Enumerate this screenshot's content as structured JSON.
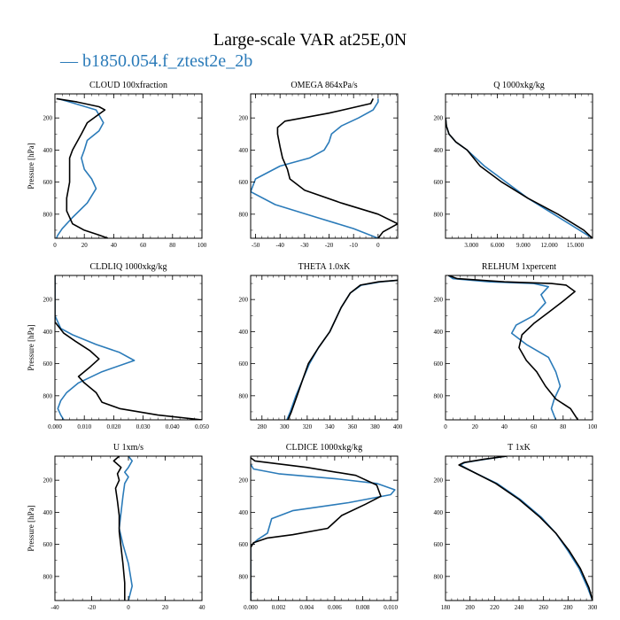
{
  "figure": {
    "title": "Large-scale VAR at25E,0N",
    "legend_label": "— b1850.054.f_ztest2e_2b",
    "colors": {
      "case": "#2b7bb9",
      "ref": "#000000"
    }
  },
  "chart_data": [
    {
      "type": "line",
      "title": "CLOUD  100xfraction",
      "ylabel": "Pressure [hPa]",
      "xlim": [
        0,
        100
      ],
      "ylim": [
        950,
        50
      ],
      "xticks": [
        0,
        20,
        40,
        60,
        80,
        100
      ],
      "xtick_labels": [
        "0",
        "20",
        "40",
        "60",
        "80",
        "100"
      ],
      "yticks": [
        200,
        400,
        600,
        800
      ],
      "ytick_labels": [
        "200",
        "400",
        "600",
        "800"
      ],
      "series": [
        {
          "color": "#2b7bb9",
          "x": [
            2,
            10,
            28,
            33,
            30,
            22,
            20,
            18,
            20,
            25,
            28,
            22,
            12,
            5,
            2,
            1
          ],
          "y": [
            80,
            100,
            150,
            230,
            280,
            340,
            400,
            450,
            520,
            580,
            640,
            730,
            820,
            890,
            930,
            950
          ]
        },
        {
          "color": "#000000",
          "x": [
            1,
            15,
            30,
            34,
            22,
            18,
            12,
            10,
            10,
            10,
            8,
            8,
            12,
            20,
            30,
            36
          ],
          "y": [
            80,
            100,
            130,
            150,
            230,
            300,
            400,
            450,
            520,
            600,
            700,
            780,
            860,
            900,
            930,
            950
          ]
        }
      ]
    },
    {
      "type": "line",
      "title": "OMEGA  864xPa/s",
      "ylabel": "",
      "xlim": [
        -52,
        8
      ],
      "ylim": [
        950,
        50
      ],
      "xticks": [
        -50,
        -40,
        -30,
        -20,
        -10,
        0
      ],
      "xtick_labels": [
        "-50",
        "-40",
        "-30",
        "-20",
        "-10",
        "0"
      ],
      "yticks": [
        200,
        400,
        600,
        800
      ],
      "ytick_labels": [
        "200",
        "400",
        "600",
        "800"
      ],
      "series": [
        {
          "color": "#2b7bb9",
          "x": [
            0,
            0,
            -2,
            -8,
            -15,
            -19,
            -20,
            -22,
            -28,
            -40,
            -50,
            -52,
            -42,
            -25,
            -10,
            0
          ],
          "y": [
            80,
            100,
            150,
            200,
            250,
            300,
            350,
            400,
            450,
            500,
            580,
            660,
            740,
            820,
            890,
            950
          ]
        },
        {
          "color": "#000000",
          "x": [
            -2,
            -3,
            -20,
            -38,
            -41,
            -41,
            -40,
            -39,
            -37,
            -36,
            -30,
            -15,
            0,
            8,
            2,
            0
          ],
          "y": [
            80,
            110,
            170,
            220,
            260,
            300,
            380,
            450,
            520,
            580,
            650,
            730,
            800,
            860,
            910,
            950
          ]
        }
      ]
    },
    {
      "type": "line",
      "title": "Q  1000xkg/kg",
      "ylabel": "",
      "xlim": [
        0,
        17000
      ],
      "ylim": [
        950,
        50
      ],
      "xticks": [
        3000,
        6000,
        9000,
        12000,
        15000
      ],
      "xtick_labels": [
        "3.000",
        "6.000",
        "9.000",
        "12.000",
        "15.000"
      ],
      "yticks": [
        200,
        400,
        600,
        800
      ],
      "ytick_labels": [
        "200",
        "400",
        "600",
        "800"
      ],
      "series": [
        {
          "color": "#2b7bb9",
          "x": [
            10,
            100,
            400,
            1200,
            2500,
            4500,
            7000,
            9500,
            12500,
            15500,
            17000
          ],
          "y": [
            200,
            250,
            300,
            350,
            400,
            500,
            600,
            700,
            800,
            900,
            950
          ]
        },
        {
          "color": "#000000",
          "x": [
            10,
            100,
            400,
            1200,
            2500,
            4000,
            6500,
            9500,
            13000,
            16000,
            17000
          ],
          "y": [
            200,
            250,
            300,
            350,
            400,
            500,
            600,
            700,
            800,
            900,
            950
          ]
        }
      ]
    },
    {
      "type": "line",
      "title": "CLDLIQ  1000xkg/kg",
      "ylabel": "Pressure [hPa]",
      "xlim": [
        0,
        0.05
      ],
      "ylim": [
        950,
        50
      ],
      "xticks": [
        0,
        0.01,
        0.02,
        0.03,
        0.04,
        0.05
      ],
      "xtick_labels": [
        "0.000",
        "0.010",
        "0.020",
        "0.030",
        "0.040",
        "0.050"
      ],
      "yticks": [
        200,
        400,
        600,
        800
      ],
      "ytick_labels": [
        "200",
        "400",
        "600",
        "800"
      ],
      "series": [
        {
          "color": "#2b7bb9",
          "x": [
            0,
            0,
            0.002,
            0.006,
            0.014,
            0.022,
            0.027,
            0.016,
            0.008,
            0.004,
            0.002,
            0.001,
            0.002,
            0.003
          ],
          "y": [
            50,
            300,
            380,
            420,
            480,
            530,
            580,
            650,
            720,
            780,
            830,
            880,
            920,
            950
          ]
        },
        {
          "color": "#000000",
          "x": [
            0,
            0,
            0.003,
            0.007,
            0.012,
            0.015,
            0.012,
            0.008,
            0.01,
            0.014,
            0.016,
            0.022,
            0.035,
            0.05
          ],
          "y": [
            50,
            340,
            410,
            460,
            520,
            570,
            620,
            680,
            720,
            780,
            840,
            880,
            920,
            950
          ]
        }
      ]
    },
    {
      "type": "line",
      "title": "THETA  1.0xK",
      "ylabel": "",
      "xlim": [
        270,
        400
      ],
      "ylim": [
        950,
        50
      ],
      "xticks": [
        280,
        300,
        320,
        340,
        360,
        380,
        400
      ],
      "xtick_labels": [
        "280",
        "300",
        "320",
        "340",
        "360",
        "380",
        "400"
      ],
      "yticks": [
        200,
        400,
        600,
        800
      ],
      "ytick_labels": [
        "200",
        "400",
        "600",
        "800"
      ],
      "series": [
        {
          "color": "#2b7bb9",
          "x": [
            400,
            385,
            368,
            358,
            350,
            340,
            330,
            322,
            316,
            310,
            305,
            302
          ],
          "y": [
            80,
            90,
            110,
            160,
            250,
            400,
            500,
            600,
            700,
            800,
            900,
            950
          ]
        },
        {
          "color": "#000000",
          "x": [
            400,
            383,
            367,
            358,
            350,
            340,
            330,
            321,
            316,
            311,
            306,
            303
          ],
          "y": [
            80,
            90,
            110,
            160,
            250,
            400,
            500,
            600,
            700,
            800,
            900,
            950
          ]
        }
      ]
    },
    {
      "type": "line",
      "title": "RELHUM  1xpercent",
      "ylabel": "",
      "xlim": [
        0,
        100
      ],
      "ylim": [
        950,
        50
      ],
      "xticks": [
        0,
        20,
        40,
        60,
        80,
        100
      ],
      "xtick_labels": [
        "0",
        "20",
        "40",
        "60",
        "80",
        "100"
      ],
      "yticks": [
        200,
        400,
        600,
        800
      ],
      "ytick_labels": [
        "200",
        "400",
        "600",
        "800"
      ],
      "series": [
        {
          "color": "#2b7bb9",
          "x": [
            2,
            5,
            30,
            60,
            70,
            65,
            68,
            60,
            48,
            45,
            55,
            70,
            75,
            78,
            74,
            72,
            75
          ],
          "y": [
            50,
            70,
            90,
            100,
            120,
            170,
            220,
            300,
            360,
            410,
            480,
            560,
            650,
            740,
            820,
            880,
            950
          ]
        },
        {
          "color": "#000000",
          "x": [
            2,
            8,
            40,
            72,
            82,
            88,
            80,
            70,
            60,
            52,
            50,
            55,
            62,
            68,
            75,
            85,
            90
          ],
          "y": [
            50,
            70,
            90,
            100,
            110,
            150,
            210,
            280,
            350,
            420,
            500,
            580,
            650,
            740,
            820,
            880,
            950
          ]
        }
      ]
    },
    {
      "type": "line",
      "title": "U  1xm/s",
      "ylabel": "Pressure [hPa]",
      "xlim": [
        -40,
        40
      ],
      "ylim": [
        950,
        50
      ],
      "xticks": [
        -40,
        -20,
        0,
        20,
        40
      ],
      "xtick_labels": [
        "-40",
        "-20",
        "0",
        "20",
        "40"
      ],
      "yticks": [
        200,
        400,
        600,
        800
      ],
      "ytick_labels": [
        "200",
        "400",
        "600",
        "800"
      ],
      "series": [
        {
          "color": "#2b7bb9",
          "x": [
            0,
            2,
            0,
            -2,
            0,
            -2,
            -3,
            -4,
            -5,
            -3,
            0,
            2,
            0
          ],
          "y": [
            50,
            80,
            120,
            150,
            180,
            220,
            300,
            400,
            500,
            600,
            720,
            860,
            950
          ]
        },
        {
          "color": "#000000",
          "x": [
            -5,
            -8,
            -4,
            -6,
            -5,
            -7,
            -6,
            -5,
            -5,
            -4,
            -3,
            -2,
            -2
          ],
          "y": [
            50,
            80,
            120,
            160,
            200,
            250,
            330,
            420,
            520,
            620,
            720,
            840,
            950
          ]
        }
      ]
    },
    {
      "type": "line",
      "title": "CLDICE  1000xkg/kg",
      "ylabel": "",
      "xlim": [
        0,
        0.0105
      ],
      "ylim": [
        950,
        50
      ],
      "xticks": [
        0,
        0.002,
        0.004,
        0.006,
        0.008,
        0.01
      ],
      "xtick_labels": [
        "0.000",
        "0.002",
        "0.004",
        "0.006",
        "0.008",
        "0.010"
      ],
      "yticks": [
        200,
        400,
        600,
        800
      ],
      "ytick_labels": [
        "200",
        "400",
        "600",
        "800"
      ],
      "series": [
        {
          "color": "#2b7bb9",
          "x": [
            0,
            0.0002,
            0.002,
            0.006,
            0.009,
            0.0103,
            0.01,
            0.007,
            0.003,
            0.0015,
            0.0012,
            0.0005,
            0,
            0
          ],
          "y": [
            100,
            130,
            160,
            190,
            220,
            260,
            290,
            340,
            390,
            440,
            530,
            570,
            610,
            950
          ]
        },
        {
          "color": "#000000",
          "x": [
            0,
            0.0003,
            0.004,
            0.0075,
            0.009,
            0.0093,
            0.0082,
            0.0065,
            0.0055,
            0.003,
            0.0012,
            0.0002,
            0,
            0
          ],
          "y": [
            60,
            80,
            120,
            170,
            230,
            300,
            350,
            420,
            500,
            540,
            560,
            590,
            620,
            950
          ]
        }
      ]
    },
    {
      "type": "line",
      "title": "T  1xK",
      "ylabel": "",
      "xlim": [
        180,
        300
      ],
      "ylim": [
        950,
        50
      ],
      "xticks": [
        180,
        200,
        220,
        240,
        260,
        280,
        300
      ],
      "xtick_labels": [
        "180",
        "200",
        "220",
        "240",
        "260",
        "280",
        "300"
      ],
      "yticks": [
        200,
        400,
        600,
        800
      ],
      "ytick_labels": [
        "200",
        "400",
        "600",
        "800"
      ],
      "series": [
        {
          "color": "#2b7bb9",
          "x": [
            230,
            212,
            196,
            192,
            203,
            222,
            241,
            258,
            270,
            280,
            289,
            296,
            300
          ],
          "y": [
            50,
            70,
            90,
            105,
            150,
            220,
            320,
            430,
            530,
            640,
            750,
            870,
            950
          ]
        },
        {
          "color": "#000000",
          "x": [
            230,
            211,
            195,
            191,
            203,
            221,
            240,
            257,
            270,
            281,
            290,
            297,
            300
          ],
          "y": [
            50,
            70,
            90,
            105,
            150,
            220,
            320,
            430,
            530,
            640,
            750,
            870,
            950
          ]
        }
      ]
    }
  ]
}
